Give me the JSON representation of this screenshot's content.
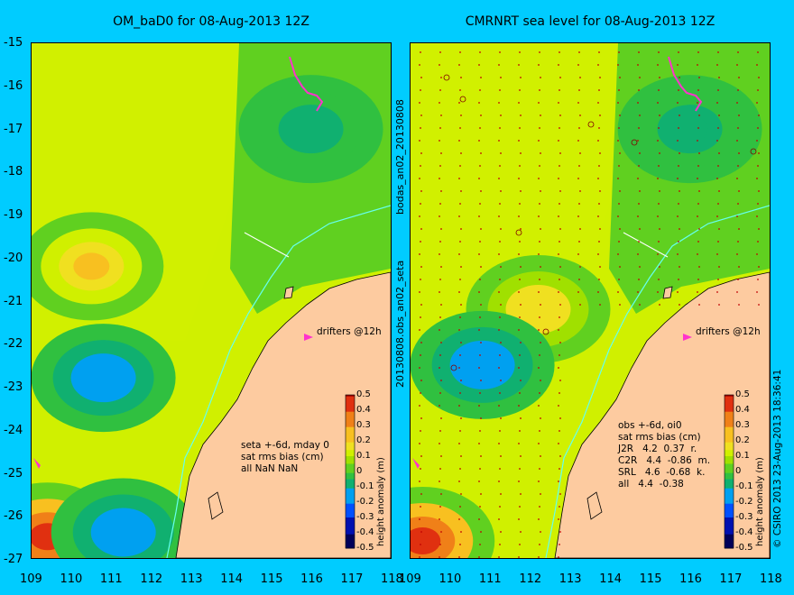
{
  "colors": {
    "background": "#00ccff",
    "land": "#fdcba0",
    "drifter": "#ff33cc",
    "track": "#66ffee"
  },
  "chart_data": [
    {
      "type": "heatmap",
      "title": "OM_baD0 for 08-Aug-2013 12Z",
      "xlim": [
        109,
        118
      ],
      "ylim": [
        -27,
        -15
      ],
      "x_ticks": [
        "109",
        "110",
        "111",
        "112",
        "113",
        "114",
        "115",
        "116",
        "117",
        "118"
      ],
      "y_ticks": [
        "-15",
        "-16",
        "-17",
        "-18",
        "-19",
        "-20",
        "-21",
        "-22",
        "-23",
        "-24",
        "-25",
        "-26",
        "-27"
      ],
      "colorbar": {
        "label": "height anomaly (m)",
        "range": [
          -0.5,
          0.5
        ],
        "ticks": [
          "0.5",
          "0.4",
          "0.3",
          "0.2",
          "0.1",
          "0",
          "-0.1",
          "-0.2",
          "-0.3",
          "-0.4",
          "-0.5"
        ]
      },
      "annotations": {
        "drifters": "drifters @12h",
        "stats": [
          "seta +-6d, mday 0",
          "sat rms bias (cm)",
          "all NaN NaN"
        ]
      },
      "features": [
        {
          "label": "positive anomaly",
          "x": 110.5,
          "y": -20.2,
          "value": 0.22
        },
        {
          "label": "negative anomaly",
          "x": 110.8,
          "y": -22.8,
          "value": -0.12
        },
        {
          "label": "negative anomaly",
          "x": 116.0,
          "y": -17.0,
          "value": -0.1
        },
        {
          "label": "positive anomaly",
          "x": 109.4,
          "y": -26.5,
          "value": 0.45
        },
        {
          "label": "negative anomaly",
          "x": 111.3,
          "y": -26.4,
          "value": -0.2
        }
      ]
    },
    {
      "type": "heatmap",
      "title": "CMRNRT sea level  for 08-Aug-2013 12Z",
      "xlim": [
        109,
        118
      ],
      "ylim": [
        -27,
        -15
      ],
      "x_ticks": [
        "109",
        "110",
        "111",
        "112",
        "113",
        "114",
        "115",
        "116",
        "117",
        "118"
      ],
      "y_ticks": [
        "-15",
        "-16",
        "-17",
        "-18",
        "-19",
        "-20",
        "-21",
        "-22",
        "-23",
        "-24",
        "-25",
        "-26",
        "-27"
      ],
      "colorbar": {
        "label": "height anomaly (m)",
        "range": [
          -0.5,
          0.5
        ],
        "ticks": [
          "0.5",
          "0.4",
          "0.3",
          "0.2",
          "0.1",
          "0",
          "-0.1",
          "-0.2",
          "-0.3",
          "-0.4",
          "-0.5"
        ]
      },
      "annotations": {
        "drifters": "drifters @12h",
        "stats": [
          "obs +-6d, oi0",
          "sat rms bias (cm)",
          "J2R   4.2  0.37  r.",
          "C2R   4.4  -0.86  m.",
          "SRL   4.6  -0.68  k.",
          "all   4.4  -0.38"
        ]
      },
      "features": [
        {
          "label": "positive anomaly",
          "x": 112.2,
          "y": -21.2,
          "value": 0.18
        },
        {
          "label": "negative anomaly",
          "x": 110.8,
          "y": -22.5,
          "value": -0.15
        },
        {
          "label": "negative anomaly",
          "x": 116.0,
          "y": -17.0,
          "value": -0.1
        },
        {
          "label": "positive anomaly",
          "x": 109.3,
          "y": -26.6,
          "value": 0.45
        }
      ]
    }
  ],
  "middle_labels": {
    "upper": "bodas_an02_20130808",
    "lower": "20130808.obs_an02_seta"
  },
  "credit": "© CSIRO 2013   23-Aug-2013 18:36:41"
}
